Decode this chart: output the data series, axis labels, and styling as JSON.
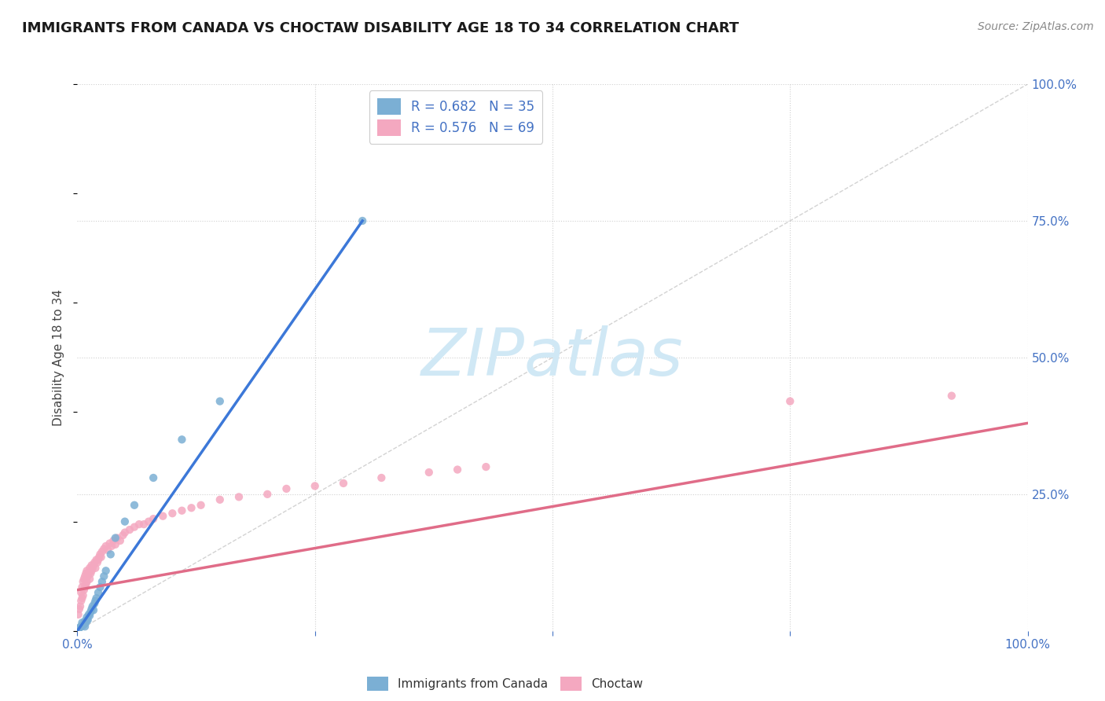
{
  "title": "IMMIGRANTS FROM CANADA VS CHOCTAW DISABILITY AGE 18 TO 34 CORRELATION CHART",
  "source_text": "Source: ZipAtlas.com",
  "ylabel": "Disability Age 18 to 34",
  "xlim": [
    0,
    1.0
  ],
  "ylim": [
    0,
    1.0
  ],
  "legend_entries": [
    "Immigrants from Canada",
    "Choctaw"
  ],
  "r_canada": 0.682,
  "n_canada": 35,
  "r_choctaw": 0.576,
  "n_choctaw": 69,
  "canada_color": "#7bafd4",
  "choctaw_color": "#f4a8c0",
  "canada_line_color": "#3c78d8",
  "choctaw_line_color": "#e06c88",
  "diag_color": "#c0c0c0",
  "background_color": "#ffffff",
  "grid_color": "#d0d0d0",
  "title_color": "#1a1a1a",
  "axis_label_color": "#444444",
  "tick_color": "#4472c4",
  "watermark_color": "#d0e8f5",
  "canada_x": [
    0.002,
    0.003,
    0.004,
    0.005,
    0.005,
    0.006,
    0.007,
    0.008,
    0.008,
    0.009,
    0.01,
    0.01,
    0.011,
    0.012,
    0.013,
    0.014,
    0.015,
    0.016,
    0.017,
    0.018,
    0.019,
    0.02,
    0.022,
    0.024,
    0.026,
    0.028,
    0.03,
    0.035,
    0.04,
    0.05,
    0.06,
    0.08,
    0.11,
    0.15,
    0.3
  ],
  "canada_y": [
    0.005,
    0.007,
    0.008,
    0.01,
    0.015,
    0.01,
    0.012,
    0.008,
    0.018,
    0.015,
    0.02,
    0.025,
    0.02,
    0.03,
    0.028,
    0.035,
    0.04,
    0.045,
    0.038,
    0.05,
    0.055,
    0.06,
    0.07,
    0.08,
    0.09,
    0.1,
    0.11,
    0.14,
    0.17,
    0.2,
    0.23,
    0.28,
    0.35,
    0.42,
    0.75
  ],
  "choctaw_x": [
    0.001,
    0.002,
    0.003,
    0.004,
    0.004,
    0.005,
    0.005,
    0.006,
    0.006,
    0.007,
    0.007,
    0.008,
    0.008,
    0.009,
    0.009,
    0.01,
    0.01,
    0.011,
    0.012,
    0.013,
    0.013,
    0.014,
    0.015,
    0.015,
    0.016,
    0.017,
    0.018,
    0.019,
    0.02,
    0.021,
    0.022,
    0.023,
    0.024,
    0.025,
    0.026,
    0.028,
    0.03,
    0.032,
    0.034,
    0.036,
    0.038,
    0.04,
    0.042,
    0.045,
    0.048,
    0.05,
    0.055,
    0.06,
    0.065,
    0.07,
    0.075,
    0.08,
    0.09,
    0.1,
    0.11,
    0.12,
    0.13,
    0.15,
    0.17,
    0.2,
    0.22,
    0.25,
    0.28,
    0.32,
    0.37,
    0.4,
    0.43,
    0.75,
    0.92
  ],
  "choctaw_y": [
    0.03,
    0.04,
    0.045,
    0.055,
    0.07,
    0.06,
    0.08,
    0.065,
    0.09,
    0.075,
    0.095,
    0.08,
    0.1,
    0.085,
    0.105,
    0.09,
    0.11,
    0.1,
    0.105,
    0.095,
    0.115,
    0.105,
    0.11,
    0.12,
    0.115,
    0.12,
    0.125,
    0.115,
    0.13,
    0.125,
    0.13,
    0.135,
    0.14,
    0.135,
    0.145,
    0.15,
    0.155,
    0.148,
    0.16,
    0.155,
    0.165,
    0.158,
    0.17,
    0.165,
    0.175,
    0.18,
    0.185,
    0.19,
    0.195,
    0.195,
    0.2,
    0.205,
    0.21,
    0.215,
    0.22,
    0.225,
    0.23,
    0.24,
    0.245,
    0.25,
    0.26,
    0.265,
    0.27,
    0.28,
    0.29,
    0.295,
    0.3,
    0.42,
    0.43
  ],
  "canada_line_x": [
    0.0,
    0.3
  ],
  "canada_line_y": [
    0.0,
    0.75
  ],
  "choctaw_line_x": [
    0.0,
    1.0
  ],
  "choctaw_line_y": [
    0.075,
    0.38
  ]
}
